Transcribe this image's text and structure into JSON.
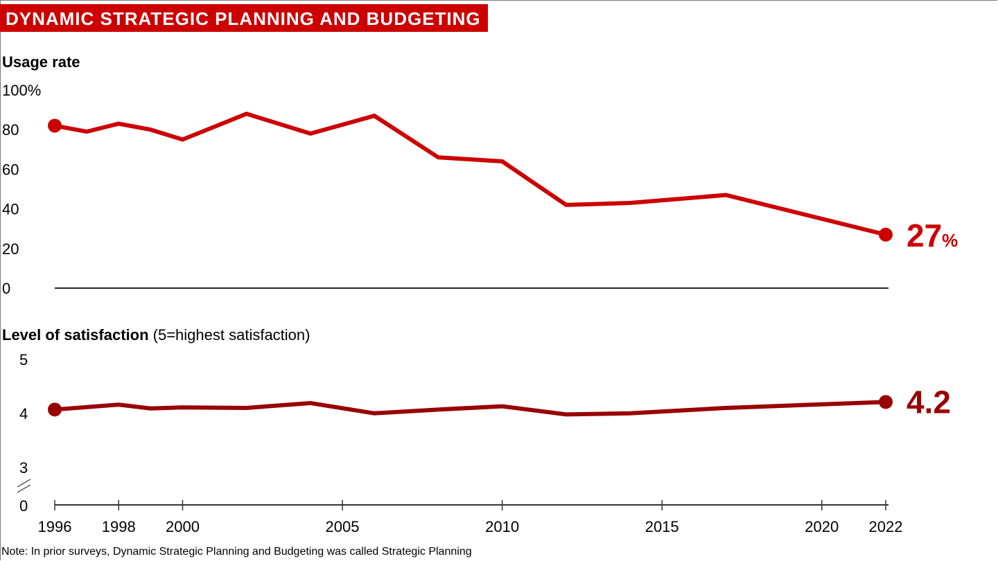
{
  "title": "DYNAMIC STRATEGIC PLANNING AND BUDGETING",
  "note": "Note: In prior surveys, Dynamic Strategic Planning and Budgeting was called Strategic Planning",
  "colors": {
    "usage": "#cc0000",
    "satisfaction": "#990000",
    "title_bg": "#cc0000"
  },
  "chart_data": [
    {
      "type": "line",
      "title": "Usage rate",
      "x": [
        1996,
        1997,
        1998,
        1999,
        2000,
        2002,
        2004,
        2006,
        2008,
        2010,
        2012,
        2014,
        2017,
        2022
      ],
      "values": [
        82,
        79,
        83,
        80,
        75,
        88,
        78,
        87,
        66,
        64,
        42,
        43,
        47,
        27
      ],
      "ylim": [
        0,
        100
      ],
      "yticks": [
        "100%",
        "80",
        "60",
        "40",
        "20",
        "0"
      ],
      "ytick_values": [
        100,
        80,
        60,
        40,
        20,
        0
      ],
      "end_label": "27",
      "end_label_unit": "%",
      "grid": false
    },
    {
      "type": "line",
      "title": "Level of satisfaction",
      "title_suffix": "(5=highest satisfaction)",
      "x": [
        1996,
        1998,
        1999,
        2000,
        2002,
        2004,
        2006,
        2008,
        2010,
        2012,
        2014,
        2017,
        2022
      ],
      "values": [
        4.06,
        4.15,
        4.08,
        4.1,
        4.09,
        4.18,
        3.99,
        4.06,
        4.12,
        3.97,
        3.99,
        4.09,
        4.2
      ],
      "ylim": [
        3,
        5
      ],
      "yticks": [
        "5",
        "4",
        "3",
        "0"
      ],
      "ytick_values": [
        5,
        4,
        3,
        0
      ],
      "axis_break": true,
      "end_label": "4.2",
      "grid": false
    }
  ],
  "xaxis": {
    "range": [
      1996,
      2022
    ],
    "ticks": [
      1996,
      1998,
      2000,
      2005,
      2010,
      2015,
      2020,
      2022
    ],
    "tick_labels": [
      "1996",
      "1998",
      "2000",
      "2005",
      "2010",
      "2015",
      "2020",
      "2022"
    ]
  }
}
